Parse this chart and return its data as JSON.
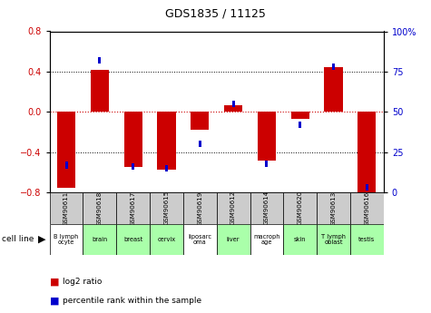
{
  "title": "GDS1835 / 11125",
  "samples": [
    "GSM90611",
    "GSM90618",
    "GSM90617",
    "GSM90615",
    "GSM90619",
    "GSM90612",
    "GSM90614",
    "GSM90620",
    "GSM90613",
    "GSM90616"
  ],
  "cell_lines": [
    "B lymph\nocyte",
    "brain",
    "breast",
    "cervix",
    "liposarc\noma",
    "liver",
    "macroph\nage",
    "skin",
    "T lymph\noblast",
    "testis"
  ],
  "cell_line_colors": [
    "#ffffff",
    "#aaffaa",
    "#aaffaa",
    "#aaffaa",
    "#ffffff",
    "#aaffaa",
    "#ffffff",
    "#aaffaa",
    "#aaffaa",
    "#aaffaa"
  ],
  "log2_ratio": [
    -0.75,
    0.42,
    -0.55,
    -0.57,
    -0.18,
    0.07,
    -0.48,
    -0.07,
    0.44,
    -0.8
  ],
  "percentile_rank": [
    17,
    82,
    16,
    15,
    30,
    55,
    18,
    42,
    78,
    3
  ],
  "ylim_left": [
    -0.8,
    0.8
  ],
  "ylim_right": [
    0,
    100
  ],
  "yticks_left": [
    -0.8,
    -0.4,
    0.0,
    0.4,
    0.8
  ],
  "yticks_right": [
    0,
    25,
    50,
    75,
    100
  ],
  "ytick_labels_right": [
    "0",
    "25",
    "50",
    "75",
    "100%"
  ],
  "bar_color_red": "#cc0000",
  "bar_color_blue": "#0000cc",
  "sample_bg_color": "#cccccc",
  "zero_line_color": "#cc0000",
  "legend_red_label": "log2 ratio",
  "legend_blue_label": "percentile rank within the sample",
  "bar_width": 0.55,
  "blue_square_size": 0.08
}
